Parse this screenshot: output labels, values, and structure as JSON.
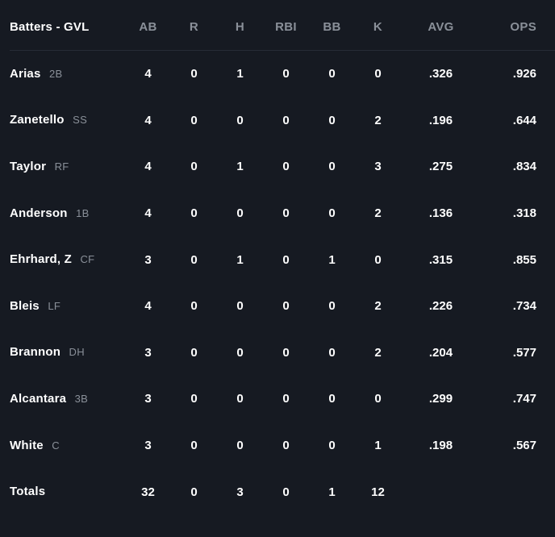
{
  "colors": {
    "background": "#161a22",
    "text_primary": "#ffffff",
    "text_muted": "#8a9099",
    "divider": "#272c36"
  },
  "table": {
    "header": {
      "name": "Batters - GVL",
      "cols": [
        "AB",
        "R",
        "H",
        "RBI",
        "BB",
        "K",
        "AVG",
        "OPS"
      ]
    },
    "rows": [
      {
        "name": "Arias",
        "pos": "2B",
        "ab": "4",
        "r": "0",
        "h": "1",
        "rbi": "0",
        "bb": "0",
        "k": "0",
        "avg": ".326",
        "ops": ".926"
      },
      {
        "name": "Zanetello",
        "pos": "SS",
        "ab": "4",
        "r": "0",
        "h": "0",
        "rbi": "0",
        "bb": "0",
        "k": "2",
        "avg": ".196",
        "ops": ".644"
      },
      {
        "name": "Taylor",
        "pos": "RF",
        "ab": "4",
        "r": "0",
        "h": "1",
        "rbi": "0",
        "bb": "0",
        "k": "3",
        "avg": ".275",
        "ops": ".834"
      },
      {
        "name": "Anderson",
        "pos": "1B",
        "ab": "4",
        "r": "0",
        "h": "0",
        "rbi": "0",
        "bb": "0",
        "k": "2",
        "avg": ".136",
        "ops": ".318"
      },
      {
        "name": "Ehrhard, Z",
        "pos": "CF",
        "ab": "3",
        "r": "0",
        "h": "1",
        "rbi": "0",
        "bb": "1",
        "k": "0",
        "avg": ".315",
        "ops": ".855"
      },
      {
        "name": "Bleis",
        "pos": "LF",
        "ab": "4",
        "r": "0",
        "h": "0",
        "rbi": "0",
        "bb": "0",
        "k": "2",
        "avg": ".226",
        "ops": ".734"
      },
      {
        "name": "Brannon",
        "pos": "DH",
        "ab": "3",
        "r": "0",
        "h": "0",
        "rbi": "0",
        "bb": "0",
        "k": "2",
        "avg": ".204",
        "ops": ".577"
      },
      {
        "name": "Alcantara",
        "pos": "3B",
        "ab": "3",
        "r": "0",
        "h": "0",
        "rbi": "0",
        "bb": "0",
        "k": "0",
        "avg": ".299",
        "ops": ".747"
      },
      {
        "name": "White",
        "pos": "C",
        "ab": "3",
        "r": "0",
        "h": "0",
        "rbi": "0",
        "bb": "0",
        "k": "1",
        "avg": ".198",
        "ops": ".567"
      }
    ],
    "totals": {
      "name": "Totals",
      "ab": "32",
      "r": "0",
      "h": "3",
      "rbi": "0",
      "bb": "1",
      "k": "12",
      "avg": "",
      "ops": ""
    }
  }
}
